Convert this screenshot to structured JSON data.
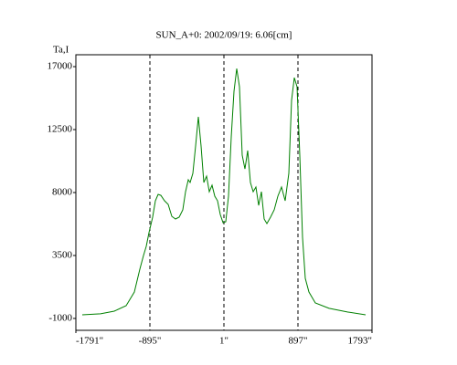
{
  "chart_data": {
    "type": "line",
    "title": "SUN_A+0: 2002/09/19: 6.06[cm]",
    "y_label": "Ta,I",
    "x": [
      -1714,
      -1492,
      -1326,
      -1183,
      -1083,
      -1017,
      -972,
      -939,
      -906,
      -862,
      -829,
      -795,
      -762,
      -718,
      -674,
      -629,
      -585,
      -541,
      -497,
      -464,
      -430,
      -408,
      -375,
      -342,
      -309,
      -276,
      -242,
      -209,
      -176,
      -143,
      -110,
      -76,
      -43,
      -10,
      23,
      56,
      90,
      123,
      156,
      189,
      222,
      255,
      289,
      322,
      355,
      388,
      421,
      455,
      488,
      521,
      565,
      609,
      654,
      698,
      742,
      786,
      820,
      853,
      886,
      919,
      952,
      986,
      1030,
      1107,
      1273,
      1494,
      1716
    ],
    "series": [
      {
        "color": "#008000",
        "values": [
          -740,
          -670,
          -480,
          -90,
          890,
          2520,
          3500,
          4150,
          5130,
          6240,
          7410,
          7870,
          7800,
          7410,
          7150,
          6300,
          6110,
          6240,
          6760,
          8060,
          8910,
          8720,
          9370,
          11320,
          13410,
          11320,
          8720,
          9170,
          8060,
          8520,
          7740,
          7410,
          6430,
          5850,
          5910,
          7740,
          11970,
          15230,
          16860,
          15560,
          10670,
          9690,
          11000,
          8720,
          8060,
          8390,
          7080,
          8060,
          6110,
          5780,
          6240,
          6760,
          7740,
          8390,
          7410,
          9370,
          14580,
          16210,
          15560,
          10670,
          4800,
          1870,
          890,
          110,
          -280,
          -540,
          -740
        ]
      }
    ],
    "xlim": [
      -1791,
      1793
    ],
    "xticks": [
      {
        "value": -1791,
        "label": "-1791\""
      },
      {
        "value": -895,
        "label": "-895\""
      },
      {
        "value": 1,
        "label": "1\""
      },
      {
        "value": 897,
        "label": "897\""
      },
      {
        "value": 1793,
        "label": "1793\""
      }
    ],
    "x_grid": "dashed",
    "ylim": [
      -1850,
      17850
    ],
    "yticks": [
      -1000,
      3500,
      8000,
      12500,
      17000
    ]
  }
}
